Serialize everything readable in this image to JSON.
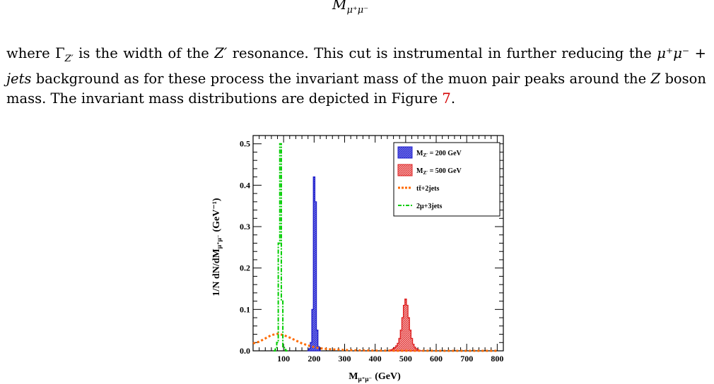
{
  "formula_fragment": "M",
  "formula_sub": "μ⁺μ⁻",
  "paragraph": {
    "l1_a": "where Γ",
    "l1_b": "Z′",
    "l1_c": " is the width of the ",
    "l1_d": "Z′",
    "l1_e": " resonance.  This cut is instrumental in further reducing the",
    "l2_a": "μ⁺μ⁻ + ",
    "l2_b": "jets",
    "l2_c": " background as for these process the invariant mass of the muon pair peaks around",
    "l3_a": "the ",
    "l3_b": "Z",
    "l3_c": " boson mass. The invariant mass distributions are depicted in Figure ",
    "l3_ref": "7",
    "l3_d": "."
  },
  "chart_data": {
    "type": "line",
    "xlabel": "M",
    "xlabel_sub": "μ⁺μ⁻",
    "xlabel_unit": "(GeV)",
    "ylabel": "1/N dN/dM",
    "ylabel_sub": "μ⁺μ⁻",
    "ylabel_unit": "(GeV⁻¹)",
    "xlim": [
      0,
      820
    ],
    "ylim": [
      0,
      0.52
    ],
    "x_ticks": [
      "100",
      "200",
      "300",
      "400",
      "500",
      "600",
      "700",
      "800"
    ],
    "y_ticks": [
      "0.0",
      "0.1",
      "0.2",
      "0.3",
      "0.4",
      "0.5"
    ],
    "legend": [
      {
        "label": "M",
        "sub": "Z′",
        "tail": " = 200 GeV",
        "color": "#1f1fcc",
        "style": "hatched-fill"
      },
      {
        "label": "M",
        "sub": "Z′",
        "tail": " = 500 GeV",
        "color": "#dd1f1f",
        "style": "hatched-fill"
      },
      {
        "label": "tt̄+2jets",
        "sub": "",
        "tail": "",
        "color": "#ff6a00",
        "style": "dotted"
      },
      {
        "label": "2μ+3jets",
        "sub": "",
        "tail": "",
        "color": "#00cc00",
        "style": "dash-dot"
      }
    ],
    "series": [
      {
        "name": "M_Z′ = 200 GeV",
        "bin_width": 5,
        "x": [
          180,
          185,
          190,
          195,
          200,
          205,
          210,
          215,
          220
        ],
        "values": [
          0.0,
          0.005,
          0.02,
          0.1,
          0.42,
          0.36,
          0.05,
          0.01,
          0.0
        ]
      },
      {
        "name": "M_Z′ = 500 GeV",
        "bin_width": 5,
        "x": [
          445,
          450,
          455,
          460,
          465,
          470,
          475,
          480,
          485,
          490,
          495,
          500,
          505,
          510,
          515,
          520,
          525,
          530,
          535,
          540,
          545,
          550
        ],
        "values": [
          0.0,
          0.002,
          0.003,
          0.005,
          0.008,
          0.012,
          0.018,
          0.03,
          0.05,
          0.08,
          0.11,
          0.125,
          0.11,
          0.08,
          0.05,
          0.03,
          0.016,
          0.009,
          0.005,
          0.003,
          0.001,
          0.0
        ]
      },
      {
        "name": "tt̄+2jets",
        "x": [
          0,
          20,
          40,
          60,
          80,
          100,
          120,
          140,
          160,
          180,
          200,
          220,
          250,
          300,
          350,
          400,
          500,
          600,
          700,
          800
        ],
        "values": [
          0.018,
          0.022,
          0.03,
          0.038,
          0.041,
          0.038,
          0.032,
          0.025,
          0.018,
          0.013,
          0.009,
          0.006,
          0.004,
          0.002,
          0.001,
          0.0005,
          0.0002,
          0.0001,
          0.0,
          0.0
        ]
      },
      {
        "name": "2μ+3jets",
        "bin_width": 5,
        "x": [
          70,
          75,
          80,
          85,
          90,
          95,
          100,
          105,
          110
        ],
        "values": [
          0.0,
          0.004,
          0.02,
          0.26,
          0.5,
          0.12,
          0.01,
          0.003,
          0.0
        ]
      }
    ]
  },
  "colors": {
    "blue": "#1f1fcc",
    "red": "#dd1f1f",
    "orange": "#ff6a00",
    "green": "#00cc00",
    "ref_red": "#d40000"
  }
}
